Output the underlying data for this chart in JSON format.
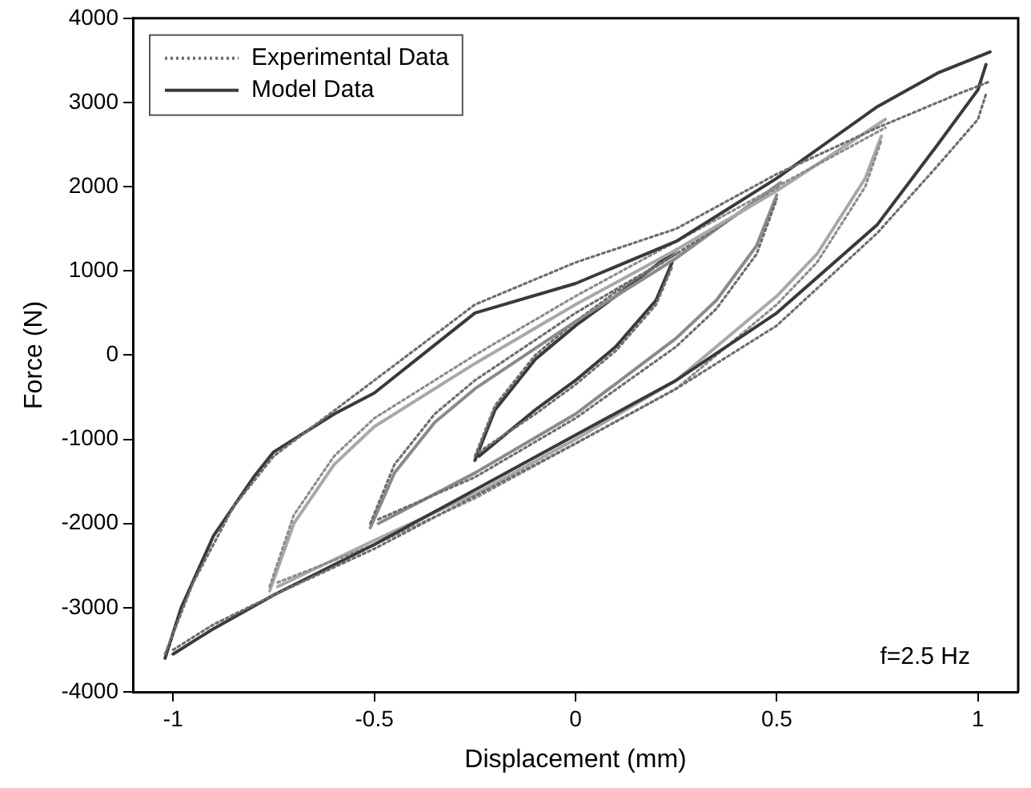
{
  "chart_data": {
    "type": "line",
    "xlabel": "Displacement (mm)",
    "ylabel": "Force (N)",
    "xlim": [
      -1.1,
      1.1
    ],
    "xticks": [
      -1,
      -0.5,
      0,
      0.5,
      1
    ],
    "ylim": [
      -4000,
      4000
    ],
    "yticks": [
      -4000,
      -3000,
      -2000,
      -1000,
      0,
      1000,
      2000,
      3000,
      4000
    ],
    "grid": false,
    "legend": "top left",
    "marker": "none",
    "annotations": [
      "f=2.5 Hz"
    ],
    "series": [
      {
        "name": "Experimental Data",
        "color": "#6e6e6e",
        "line_style": "dotted",
        "x": [
          -1.02,
          -0.95,
          -0.85,
          -0.75,
          -0.5,
          -0.25,
          0,
          0.25,
          0.5,
          0.75,
          0.95,
          1.03
        ],
        "values": [
          -3550,
          -2700,
          -1800,
          -1200,
          -300,
          600,
          1100,
          1500,
          2150,
          2700,
          3100,
          3250
        ]
      },
      {
        "color": "#6e6e6e",
        "line_style": "dotted",
        "x": [
          -1.0,
          -0.9,
          -0.75,
          -0.5,
          0,
          0.25,
          0.5,
          0.75,
          0.9,
          1.0,
          1.02
        ],
        "values": [
          -3500,
          -3200,
          -2850,
          -2300,
          -1050,
          -400,
          350,
          1450,
          2250,
          2800,
          3100
        ]
      },
      {
        "name": "Model Data",
        "color": "#3a3a3a",
        "line_style": "solid",
        "x": [
          -1.02,
          -0.98,
          -0.9,
          -0.8,
          -0.75,
          -0.6,
          -0.5,
          -0.25,
          0,
          0.25,
          0.5,
          0.75,
          0.9,
          1.03
        ],
        "values": [
          -3600,
          -3000,
          -2150,
          -1450,
          -1150,
          -700,
          -450,
          500,
          850,
          1350,
          2100,
          2950,
          3350,
          3600
        ]
      },
      {
        "color": "#3a3a3a",
        "line_style": "solid",
        "x": [
          -1.0,
          -0.9,
          -0.75,
          -0.5,
          -0.25,
          0,
          0.25,
          0.5,
          0.75,
          0.9,
          1.0,
          1.02
        ],
        "values": [
          -3550,
          -3250,
          -2850,
          -2250,
          -1600,
          -950,
          -300,
          500,
          1550,
          2500,
          3150,
          3450
        ]
      },
      {
        "color": "#8c8c8c",
        "line_style": "dotted",
        "x": [
          -0.76,
          -0.7,
          -0.6,
          -0.5,
          -0.25,
          0,
          0.25,
          0.5,
          0.77
        ],
        "values": [
          -2750,
          -1900,
          -1200,
          -750,
          0,
          700,
          1350,
          2000,
          2700
        ]
      },
      {
        "color": "#8c8c8c",
        "line_style": "dotted",
        "x": [
          -0.74,
          -0.5,
          -0.25,
          0,
          0.25,
          0.5,
          0.6,
          0.72,
          0.76
        ],
        "values": [
          -2700,
          -2250,
          -1700,
          -1050,
          -400,
          600,
          1100,
          2000,
          2550
        ]
      },
      {
        "color": "#a8a8a8",
        "line_style": "solid",
        "x": [
          -0.76,
          -0.7,
          -0.6,
          -0.5,
          -0.25,
          0,
          0.25,
          0.5,
          0.77
        ],
        "values": [
          -2800,
          -2000,
          -1300,
          -850,
          -100,
          600,
          1250,
          1950,
          2800
        ]
      },
      {
        "color": "#a8a8a8",
        "line_style": "solid",
        "x": [
          -0.74,
          -0.5,
          -0.25,
          0,
          0.25,
          0.5,
          0.6,
          0.72,
          0.76
        ],
        "values": [
          -2750,
          -2200,
          -1650,
          -1000,
          -300,
          700,
          1200,
          2100,
          2600
        ]
      },
      {
        "color": "#6e6e6e",
        "line_style": "dotted",
        "x": [
          -0.51,
          -0.45,
          -0.35,
          -0.25,
          0,
          0.25,
          0.51
        ],
        "values": [
          -2000,
          -1300,
          -700,
          -300,
          500,
          1200,
          2000
        ]
      },
      {
        "color": "#6e6e6e",
        "line_style": "dotted",
        "x": [
          -0.49,
          -0.25,
          0,
          0.25,
          0.35,
          0.45,
          0.5
        ],
        "values": [
          -1950,
          -1450,
          -750,
          100,
          550,
          1200,
          1850
        ]
      },
      {
        "color": "#8a8a8a",
        "line_style": "solid",
        "x": [
          -0.51,
          -0.45,
          -0.35,
          -0.25,
          0,
          0.25,
          0.51
        ],
        "values": [
          -2050,
          -1400,
          -800,
          -400,
          400,
          1150,
          2050
        ]
      },
      {
        "color": "#8a8a8a",
        "line_style": "solid",
        "x": [
          -0.49,
          -0.25,
          0,
          0.25,
          0.35,
          0.45,
          0.5
        ],
        "values": [
          -2000,
          -1400,
          -700,
          200,
          650,
          1300,
          1900
        ]
      },
      {
        "color": "#6e6e6e",
        "line_style": "dotted",
        "x": [
          -0.25,
          -0.2,
          -0.1,
          0,
          0.1,
          0.25
        ],
        "values": [
          -1200,
          -600,
          0,
          400,
          750,
          1200
        ]
      },
      {
        "color": "#6e6e6e",
        "line_style": "dotted",
        "x": [
          -0.24,
          -0.1,
          0,
          0.1,
          0.2,
          0.24
        ],
        "values": [
          -1150,
          -700,
          -350,
          50,
          600,
          1050
        ]
      },
      {
        "color": "#3a3a3a",
        "line_style": "solid",
        "x": [
          -0.25,
          -0.2,
          -0.1,
          0,
          0.1,
          0.25
        ],
        "values": [
          -1250,
          -650,
          -50,
          350,
          700,
          1250
        ]
      },
      {
        "color": "#3a3a3a",
        "line_style": "solid",
        "x": [
          -0.24,
          -0.1,
          0,
          0.1,
          0.2,
          0.24
        ],
        "values": [
          -1200,
          -650,
          -300,
          100,
          650,
          1100
        ]
      }
    ]
  }
}
